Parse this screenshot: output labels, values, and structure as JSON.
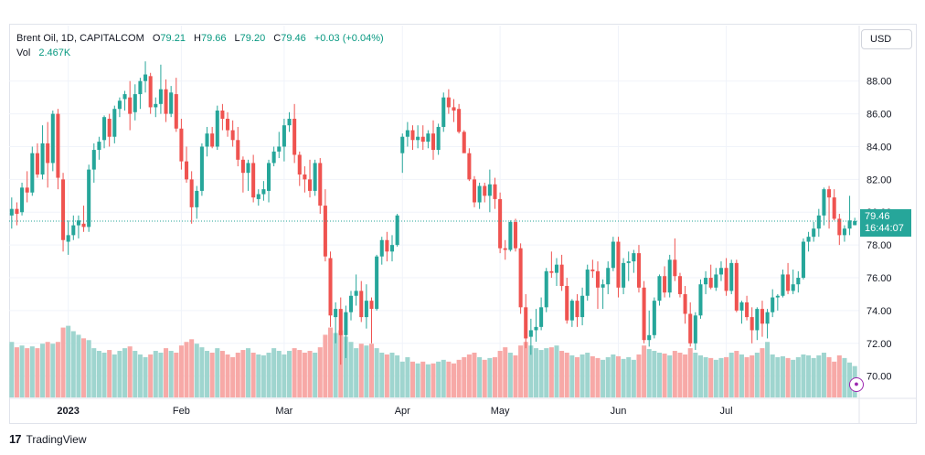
{
  "legend": {
    "symbol": "Brent Oil, 1D, CAPITALCOM",
    "o_label": "O",
    "o_value": "79.21",
    "h_label": "H",
    "h_value": "79.66",
    "l_label": "L",
    "l_value": "79.20",
    "c_label": "C",
    "c_value": "79.46",
    "change": "+0.03 (+0.04%)",
    "vol_label": "Vol",
    "vol_value": "2.467K"
  },
  "currency": "USD",
  "price_tag": {
    "price": "79.46",
    "countdown": "16:44:07"
  },
  "brand": {
    "logo": "17",
    "name": "TradingView"
  },
  "colors": {
    "up": "#26a69a",
    "down": "#ef5350",
    "vol_up": "#9fd5cf",
    "vol_down": "#f7a9a7",
    "grid": "#f0f3fa"
  },
  "chart_data": {
    "type": "candlestick",
    "y_ticks": [
      "70.00",
      "72.00",
      "74.00",
      "76.00",
      "78.00",
      "80.00",
      "82.00",
      "84.00",
      "86.00",
      "88.00"
    ],
    "ylim": [
      68.7,
      89.6
    ],
    "x_labels": [
      {
        "label": "2023",
        "index": 11
      },
      {
        "label": "Feb",
        "index": 33
      },
      {
        "label": "Mar",
        "index": 53
      },
      {
        "label": "Apr",
        "index": 76
      },
      {
        "label": "May",
        "index": 95
      },
      {
        "label": "Jun",
        "index": 118
      },
      {
        "label": "Jul",
        "index": 139
      }
    ],
    "last_price": 79.46,
    "volume_note": "relative volume 0-1",
    "ohlc": [
      [
        79.8,
        80.9,
        79.0,
        80.2,
        0.62
      ],
      [
        80.2,
        80.6,
        79.2,
        79.9,
        0.56
      ],
      [
        80.0,
        81.8,
        79.8,
        81.5,
        0.58
      ],
      [
        81.5,
        82.5,
        80.6,
        81.2,
        0.55
      ],
      [
        81.2,
        84.0,
        81.0,
        83.6,
        0.57
      ],
      [
        83.6,
        84.2,
        82.1,
        82.3,
        0.55
      ],
      [
        82.3,
        85.3,
        82.0,
        84.2,
        0.6
      ],
      [
        84.2,
        85.5,
        81.5,
        83.0,
        0.62
      ],
      [
        83.0,
        86.2,
        82.5,
        86.0,
        0.6
      ],
      [
        86.0,
        86.3,
        81.4,
        82.1,
        0.62
      ],
      [
        82.0,
        82.4,
        77.6,
        78.3,
        0.78
      ],
      [
        78.2,
        79.5,
        77.4,
        78.6,
        0.8
      ],
      [
        78.6,
        79.8,
        78.3,
        79.2,
        0.74
      ],
      [
        79.2,
        79.8,
        78.4,
        79.5,
        0.7
      ],
      [
        79.3,
        80.4,
        78.8,
        79.1,
        0.66
      ],
      [
        79.1,
        82.9,
        78.8,
        82.6,
        0.64
      ],
      [
        82.6,
        84.2,
        81.8,
        83.8,
        0.55
      ],
      [
        83.8,
        84.6,
        83.2,
        84.3,
        0.52
      ],
      [
        84.4,
        85.9,
        83.9,
        85.8,
        0.5
      ],
      [
        85.7,
        86.0,
        84.0,
        84.6,
        0.53
      ],
      [
        84.6,
        86.5,
        84.2,
        86.3,
        0.48
      ],
      [
        86.3,
        87.0,
        85.8,
        86.8,
        0.52
      ],
      [
        86.9,
        87.4,
        86.2,
        87.2,
        0.55
      ],
      [
        87.0,
        88.0,
        85.0,
        86.0,
        0.57
      ],
      [
        86.1,
        87.8,
        85.6,
        87.2,
        0.52
      ],
      [
        87.2,
        88.2,
        86.3,
        88.0,
        0.48
      ],
      [
        88.0,
        89.2,
        87.3,
        88.4,
        0.45
      ],
      [
        88.3,
        88.5,
        86.0,
        86.4,
        0.48
      ],
      [
        86.4,
        87.0,
        85.8,
        86.6,
        0.52
      ],
      [
        86.6,
        89.0,
        86.0,
        87.5,
        0.5
      ],
      [
        87.5,
        88.1,
        85.5,
        86.0,
        0.55
      ],
      [
        86.0,
        87.7,
        85.8,
        87.3,
        0.52
      ],
      [
        87.2,
        88.2,
        84.9,
        85.1,
        0.5
      ],
      [
        85.1,
        85.7,
        82.6,
        83.1,
        0.58
      ],
      [
        83.1,
        84.0,
        81.8,
        82.0,
        0.62
      ],
      [
        82.0,
        82.5,
        79.3,
        80.3,
        0.65
      ],
      [
        80.3,
        81.6,
        79.6,
        81.3,
        0.6
      ],
      [
        81.3,
        84.2,
        81.0,
        84.0,
        0.56
      ],
      [
        84.0,
        85.2,
        83.4,
        84.8,
        0.52
      ],
      [
        84.8,
        85.2,
        83.9,
        84.0,
        0.5
      ],
      [
        84.0,
        86.5,
        83.8,
        86.2,
        0.55
      ],
      [
        86.2,
        86.6,
        85.0,
        85.7,
        0.52
      ],
      [
        85.7,
        86.1,
        84.6,
        85.0,
        0.48
      ],
      [
        85.0,
        85.6,
        84.0,
        84.4,
        0.45
      ],
      [
        84.4,
        85.2,
        82.8,
        83.2,
        0.5
      ],
      [
        83.2,
        83.4,
        81.2,
        82.4,
        0.53
      ],
      [
        82.4,
        83.2,
        81.3,
        83.0,
        0.55
      ],
      [
        83.0,
        83.5,
        80.6,
        80.9,
        0.5
      ],
      [
        80.8,
        81.4,
        80.4,
        81.1,
        0.48
      ],
      [
        81.1,
        81.9,
        80.7,
        81.4,
        0.47
      ],
      [
        81.3,
        83.2,
        80.6,
        83.0,
        0.5
      ],
      [
        83.0,
        84.0,
        82.8,
        83.7,
        0.55
      ],
      [
        83.7,
        84.9,
        83.3,
        84.0,
        0.52
      ],
      [
        84.0,
        85.7,
        83.1,
        85.3,
        0.48
      ],
      [
        85.3,
        86.1,
        84.9,
        85.7,
        0.52
      ],
      [
        85.7,
        86.6,
        83.0,
        83.5,
        0.55
      ],
      [
        83.5,
        83.7,
        81.6,
        82.3,
        0.53
      ],
      [
        82.3,
        82.8,
        81.2,
        82.0,
        0.5
      ],
      [
        82.0,
        83.2,
        80.9,
        81.3,
        0.52
      ],
      [
        81.3,
        83.2,
        81.0,
        83.0,
        0.5
      ],
      [
        83.0,
        83.3,
        79.9,
        80.4,
        0.56
      ],
      [
        80.4,
        81.4,
        77.0,
        77.3,
        0.7
      ],
      [
        77.2,
        77.6,
        73.0,
        73.7,
        0.78
      ],
      [
        73.6,
        74.5,
        72.0,
        74.1,
        0.72
      ],
      [
        74.1,
        74.8,
        70.7,
        72.5,
        0.75
      ],
      [
        72.5,
        74.3,
        71.1,
        73.9,
        0.68
      ],
      [
        73.9,
        75.2,
        73.4,
        74.9,
        0.62
      ],
      [
        74.9,
        76.2,
        74.3,
        75.2,
        0.55
      ],
      [
        75.2,
        75.8,
        73.3,
        73.6,
        0.6
      ],
      [
        73.6,
        75.6,
        72.9,
        74.6,
        0.58
      ],
      [
        74.6,
        74.8,
        72.0,
        74.1,
        0.6
      ],
      [
        74.1,
        77.4,
        74.0,
        77.3,
        0.55
      ],
      [
        77.3,
        78.5,
        76.8,
        78.3,
        0.5
      ],
      [
        78.3,
        78.8,
        77.0,
        77.6,
        0.48
      ],
      [
        77.6,
        78.6,
        77.0,
        78.0,
        0.5
      ],
      [
        78.0,
        79.9,
        77.9,
        79.8,
        0.47
      ],
      [
        83.6,
        84.8,
        82.4,
        84.6,
        0.4
      ],
      [
        84.6,
        85.5,
        84.0,
        85.0,
        0.45
      ],
      [
        85.0,
        85.3,
        83.8,
        84.4,
        0.4
      ],
      [
        84.4,
        85.3,
        83.9,
        84.6,
        0.38
      ],
      [
        84.6,
        85.3,
        83.8,
        84.3,
        0.4
      ],
      [
        84.3,
        85.0,
        83.9,
        84.8,
        0.37
      ],
      [
        84.8,
        85.6,
        83.2,
        83.8,
        0.38
      ],
      [
        83.8,
        85.4,
        83.5,
        85.2,
        0.4
      ],
      [
        85.2,
        87.3,
        84.9,
        87.0,
        0.42
      ],
      [
        87.0,
        87.5,
        86.0,
        86.4,
        0.4
      ],
      [
        86.4,
        86.9,
        85.5,
        86.2,
        0.38
      ],
      [
        86.3,
        86.6,
        84.8,
        84.9,
        0.42
      ],
      [
        84.9,
        85.0,
        83.7,
        83.6,
        0.45
      ],
      [
        83.6,
        83.9,
        81.9,
        82.0,
        0.48
      ],
      [
        82.0,
        82.2,
        80.3,
        80.6,
        0.5
      ],
      [
        80.6,
        81.8,
        80.2,
        81.6,
        0.45
      ],
      [
        81.6,
        81.8,
        80.6,
        81.0,
        0.42
      ],
      [
        81.0,
        82.6,
        80.0,
        81.7,
        0.44
      ],
      [
        81.7,
        82.1,
        80.2,
        80.8,
        0.45
      ],
      [
        80.8,
        81.2,
        77.5,
        77.8,
        0.52
      ],
      [
        77.8,
        78.3,
        77.1,
        77.7,
        0.56
      ],
      [
        77.7,
        79.5,
        77.6,
        79.4,
        0.5
      ],
      [
        79.4,
        79.6,
        77.6,
        77.8,
        0.47
      ],
      [
        77.8,
        78.1,
        73.8,
        74.2,
        0.58
      ],
      [
        74.2,
        75.0,
        71.7,
        72.3,
        0.62
      ],
      [
        72.4,
        73.5,
        71.3,
        72.8,
        0.58
      ],
      [
        72.8,
        74.1,
        72.1,
        73.0,
        0.55
      ],
      [
        73.0,
        74.8,
        72.8,
        74.2,
        0.53
      ],
      [
        74.2,
        76.6,
        73.9,
        76.4,
        0.55
      ],
      [
        76.4,
        77.6,
        76.0,
        76.3,
        0.56
      ],
      [
        76.3,
        77.2,
        75.5,
        76.8,
        0.58
      ],
      [
        76.8,
        77.4,
        75.2,
        75.5,
        0.52
      ],
      [
        75.5,
        76.0,
        73.2,
        73.4,
        0.5
      ],
      [
        73.4,
        74.7,
        73.0,
        74.6,
        0.47
      ],
      [
        74.6,
        75.0,
        73.0,
        73.6,
        0.45
      ],
      [
        73.6,
        75.4,
        73.1,
        74.9,
        0.48
      ],
      [
        74.9,
        76.8,
        74.6,
        76.5,
        0.5
      ],
      [
        76.5,
        77.1,
        76.0,
        76.4,
        0.46
      ],
      [
        76.4,
        77.0,
        74.1,
        75.4,
        0.44
      ],
      [
        75.4,
        75.9,
        74.1,
        75.6,
        0.42
      ],
      [
        75.6,
        77.0,
        75.0,
        76.6,
        0.45
      ],
      [
        76.6,
        78.5,
        76.4,
        78.2,
        0.48
      ],
      [
        78.2,
        78.5,
        74.8,
        75.4,
        0.46
      ],
      [
        75.4,
        77.2,
        75.0,
        76.9,
        0.43
      ],
      [
        76.9,
        77.6,
        75.8,
        77.0,
        0.45
      ],
      [
        77.0,
        77.7,
        76.3,
        77.5,
        0.42
      ],
      [
        77.5,
        78.0,
        75.1,
        75.4,
        0.48
      ],
      [
        75.4,
        75.8,
        72.0,
        72.2,
        0.58
      ],
      [
        72.2,
        74.0,
        71.8,
        72.5,
        0.54
      ],
      [
        72.5,
        74.8,
        72.3,
        74.6,
        0.52
      ],
      [
        74.6,
        76.2,
        74.3,
        76.1,
        0.5
      ],
      [
        76.1,
        76.7,
        74.8,
        75.1,
        0.49
      ],
      [
        75.1,
        77.4,
        74.8,
        77.1,
        0.47
      ],
      [
        77.1,
        78.4,
        75.8,
        76.1,
        0.52
      ],
      [
        76.1,
        76.3,
        74.8,
        75.0,
        0.5
      ],
      [
        75.0,
        75.5,
        73.2,
        73.8,
        0.48
      ],
      [
        73.8,
        74.5,
        71.8,
        72.0,
        0.55
      ],
      [
        72.0,
        73.9,
        71.6,
        73.7,
        0.5
      ],
      [
        73.7,
        75.9,
        73.5,
        75.6,
        0.47
      ],
      [
        75.6,
        76.4,
        75.0,
        76.0,
        0.45
      ],
      [
        76.0,
        76.8,
        75.3,
        75.4,
        0.44
      ],
      [
        75.4,
        76.6,
        75.2,
        76.2,
        0.42
      ],
      [
        76.2,
        77.0,
        75.8,
        76.6,
        0.44
      ],
      [
        76.6,
        77.2,
        74.9,
        75.2,
        0.45
      ],
      [
        75.2,
        77.1,
        75.0,
        76.9,
        0.5
      ],
      [
        76.9,
        77.1,
        73.9,
        74.0,
        0.52
      ],
      [
        74.0,
        74.6,
        73.2,
        74.5,
        0.48
      ],
      [
        74.5,
        74.9,
        73.4,
        73.6,
        0.45
      ],
      [
        73.6,
        74.2,
        72.0,
        72.8,
        0.47
      ],
      [
        72.8,
        74.2,
        72.2,
        74.1,
        0.5
      ],
      [
        74.1,
        74.6,
        72.4,
        73.2,
        0.55
      ],
      [
        73.2,
        74.1,
        72.3,
        73.9,
        0.62
      ],
      [
        73.9,
        75.3,
        73.6,
        74.8,
        0.48
      ],
      [
        74.8,
        75.0,
        74.0,
        74.9,
        0.45
      ],
      [
        74.9,
        76.5,
        74.8,
        76.2,
        0.46
      ],
      [
        76.2,
        76.9,
        75.0,
        75.2,
        0.44
      ],
      [
        75.2,
        76.5,
        75.0,
        75.6,
        0.42
      ],
      [
        75.6,
        76.4,
        75.1,
        76.0,
        0.45
      ],
      [
        76.0,
        78.4,
        75.9,
        78.2,
        0.48
      ],
      [
        78.2,
        78.8,
        77.6,
        78.5,
        0.47
      ],
      [
        78.5,
        79.4,
        78.2,
        79.0,
        0.44
      ],
      [
        79.0,
        80.2,
        78.5,
        79.8,
        0.47
      ],
      [
        79.8,
        81.5,
        79.2,
        81.4,
        0.5
      ],
      [
        81.4,
        81.6,
        79.0,
        80.9,
        0.45
      ],
      [
        80.9,
        81.4,
        79.5,
        79.6,
        0.4
      ],
      [
        79.6,
        79.9,
        78.0,
        78.6,
        0.47
      ],
      [
        78.6,
        79.2,
        78.2,
        79.0,
        0.44
      ],
      [
        79.0,
        81.0,
        78.6,
        79.5,
        0.39
      ],
      [
        79.21,
        79.66,
        79.2,
        79.46,
        0.35
      ]
    ]
  }
}
